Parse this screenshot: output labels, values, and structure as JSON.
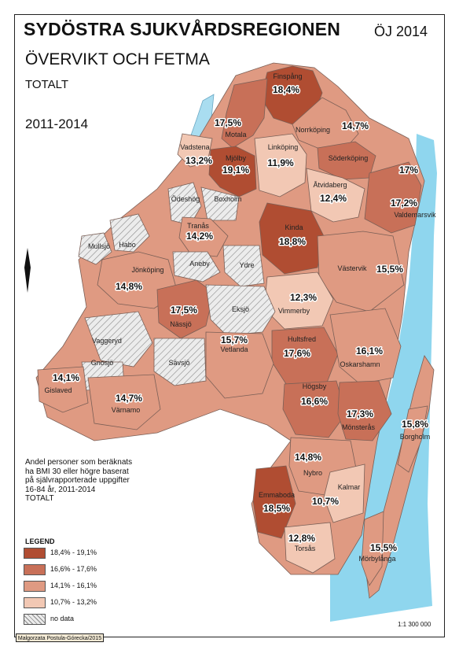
{
  "header": {
    "title": "SYDÖSTRA SJUKVÅRDSREGIONEN",
    "year_tag": "ÖJ 2014",
    "subtitle": "ÖVERVIKT OCH FETMA",
    "group": "TOTALT",
    "period": "2011-2014"
  },
  "note_lines": [
    "Andel personer som beräknats",
    "ha BMI 30 eller högre baserat",
    "på självrapporterade uppgifter",
    "16-84 år,  2011-2014",
    "TOTALT"
  ],
  "legend": {
    "title": "LEGEND",
    "items": [
      {
        "label": "18,4% - 19,1%",
        "color": "#b04d32"
      },
      {
        "label": "16,6% - 17,6%",
        "color": "#c87058"
      },
      {
        "label": "14,1% - 16,1%",
        "color": "#df9a82"
      },
      {
        "label": "10,7% - 13,2%",
        "color": "#f2c8b4"
      },
      {
        "label": "no data",
        "color": "hatch"
      }
    ]
  },
  "scale": "1:1 300 000",
  "credit": "Malgorzata Postula-Górecka/2015",
  "colors": {
    "water": "#a9ddf0",
    "sea": "#8fd6ee",
    "border": "#7a5f56",
    "nodata": "#e8e8e8"
  },
  "municipalities": [
    {
      "name": "Finspång",
      "value": "18,4%",
      "class": 1
    },
    {
      "name": "Motala",
      "value": "17,5%",
      "class": 2
    },
    {
      "name": "Norrköping",
      "value": "14,7%",
      "class": 3
    },
    {
      "name": "Vadstena",
      "value": "13,2%",
      "class": 4
    },
    {
      "name": "Mjölby",
      "value": "19,1%",
      "class": 1
    },
    {
      "name": "Linköping",
      "value": "11,9%",
      "class": 4
    },
    {
      "name": "Söderköping",
      "value": "17%",
      "class": 2
    },
    {
      "name": "Åtvidaberg",
      "value": "12,4%",
      "class": 4
    },
    {
      "name": "Valdemarsvik",
      "value": "17,2%",
      "class": 2
    },
    {
      "name": "Ödeshög",
      "value": "",
      "class": 0
    },
    {
      "name": "Boxholm",
      "value": "",
      "class": 0
    },
    {
      "name": "Tranås",
      "value": "14,2%",
      "class": 3
    },
    {
      "name": "Kinda",
      "value": "18,8%",
      "class": 1
    },
    {
      "name": "Mullsjö",
      "value": "",
      "class": 0
    },
    {
      "name": "Habo",
      "value": "",
      "class": 0
    },
    {
      "name": "Aneby",
      "value": "",
      "class": 0
    },
    {
      "name": "Ydre",
      "value": "",
      "class": 0
    },
    {
      "name": "Jönköping",
      "value": "14,8%",
      "class": 3
    },
    {
      "name": "Västervik",
      "value": "15,5%",
      "class": 3
    },
    {
      "name": "Vimmerby",
      "value": "12,3%",
      "class": 4
    },
    {
      "name": "Nässjö",
      "value": "17,5%",
      "class": 2
    },
    {
      "name": "Eksjö",
      "value": "",
      "class": 0
    },
    {
      "name": "Hultsfred",
      "value": "17,6%",
      "class": 2
    },
    {
      "name": "Oskarshamn",
      "value": "16,1%",
      "class": 3
    },
    {
      "name": "Vaggeryd",
      "value": "",
      "class": 0
    },
    {
      "name": "Vetlanda",
      "value": "15,7%",
      "class": 3
    },
    {
      "name": "Gnosjö",
      "value": "",
      "class": 0
    },
    {
      "name": "Sävsjö",
      "value": "",
      "class": 0
    },
    {
      "name": "Gislaved",
      "value": "14,1%",
      "class": 3
    },
    {
      "name": "Värnamo",
      "value": "14,7%",
      "class": 3
    },
    {
      "name": "Högsby",
      "value": "16,6%",
      "class": 2
    },
    {
      "name": "Mönsterås",
      "value": "17,3%",
      "class": 2
    },
    {
      "name": "Borgholm",
      "value": "15,8%",
      "class": 3
    },
    {
      "name": "Nybro",
      "value": "14,8%",
      "class": 3
    },
    {
      "name": "Emmaboda",
      "value": "18,5%",
      "class": 1
    },
    {
      "name": "Kalmar",
      "value": "10,7%",
      "class": 4
    },
    {
      "name": "Torsås",
      "value": "12,8%",
      "class": 4
    },
    {
      "name": "Mörbylånga",
      "value": "15,5%",
      "class": 3
    }
  ]
}
